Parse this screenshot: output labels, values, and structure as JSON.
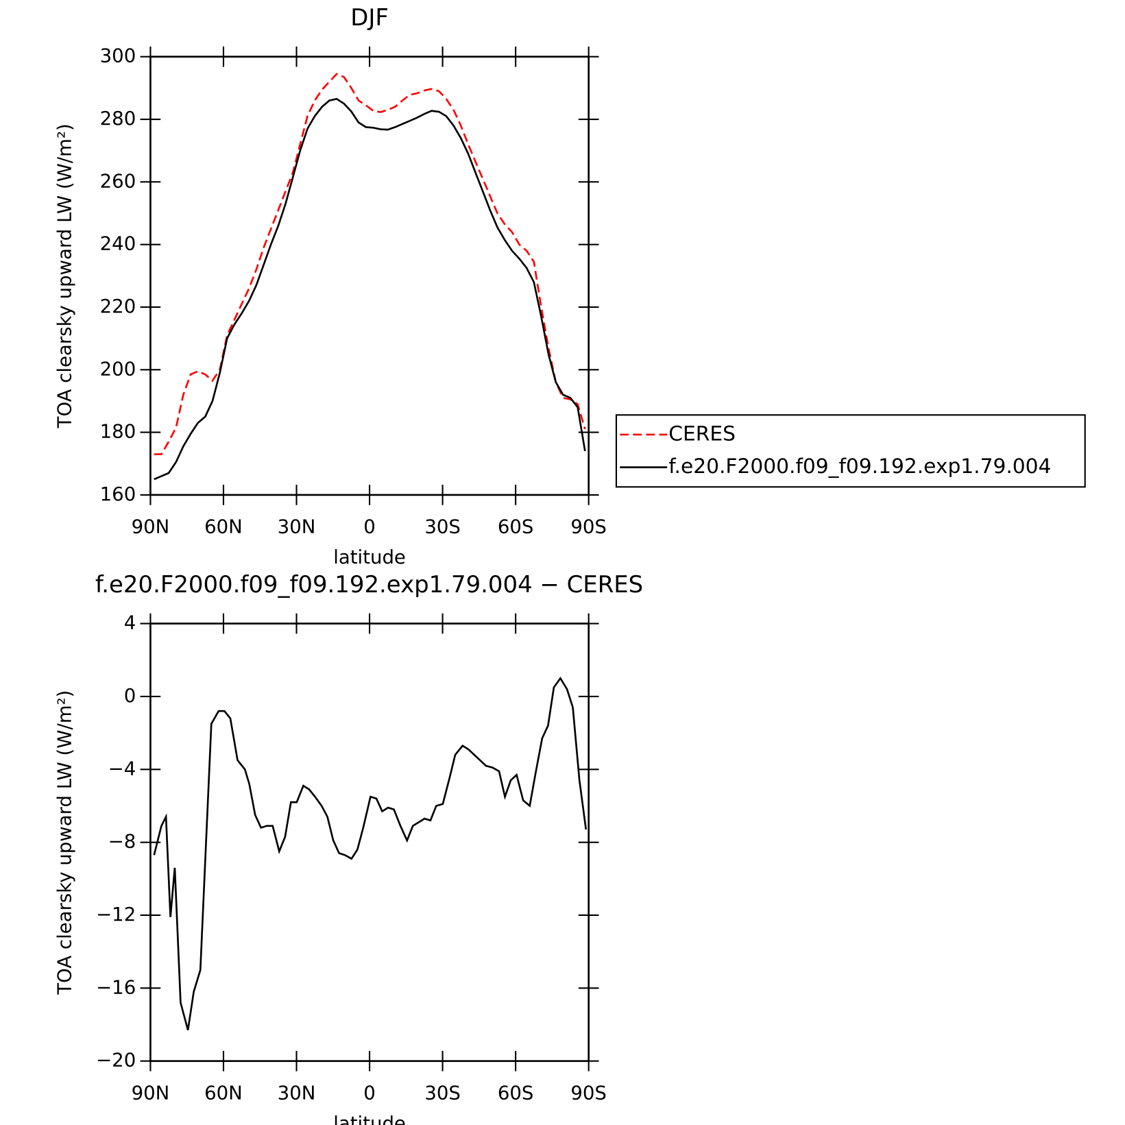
{
  "chart_data": [
    {
      "type": "line",
      "title": "DJF",
      "x_label": "latitude",
      "y_label": "TOA clearsky upward LW (W/m²)",
      "xlim": [
        90,
        -90
      ],
      "xticks": [
        {
          "value": 90,
          "label": "90N"
        },
        {
          "value": 60,
          "label": "60N"
        },
        {
          "value": 30,
          "label": "30N"
        },
        0,
        {
          "value": -30,
          "label": "30S"
        },
        {
          "value": -60,
          "label": "60S"
        },
        {
          "value": -90,
          "label": "90S"
        }
      ],
      "ylim": [
        160,
        300
      ],
      "yticks": [
        160,
        180,
        200,
        220,
        240,
        260,
        280,
        300
      ],
      "legend": "right",
      "x": [
        88.5,
        85.5,
        82.5,
        79.5,
        76.5,
        73.5,
        70.5,
        67.5,
        64.5,
        61.5,
        58.5,
        55.5,
        52.5,
        49.5,
        46.5,
        43.5,
        40.5,
        37.5,
        34.5,
        31.5,
        28.5,
        25.5,
        22.5,
        19.5,
        16.5,
        13.5,
        10.5,
        7.5,
        4.5,
        1.5,
        -1.5,
        -4.5,
        -7.5,
        -10.5,
        -13.5,
        -16.5,
        -19.5,
        -22.5,
        -25.5,
        -28.5,
        -31.5,
        -34.5,
        -37.5,
        -40.5,
        -43.5,
        -46.5,
        -49.5,
        -52.5,
        -55.5,
        -58.5,
        -61.5,
        -64.5,
        -67.5,
        -70.5,
        -73.5,
        -76.5,
        -79.5,
        -82.5,
        -85.5,
        -88.5
      ],
      "series": [
        {
          "name": "CERES",
          "color": "#ff0000",
          "linestyle": "dashed",
          "values": [
            173,
            173,
            177,
            181.5,
            192,
            198.5,
            199.5,
            198.5,
            196.5,
            200,
            211,
            216,
            221,
            226,
            232,
            239,
            245,
            251,
            257,
            263,
            272,
            281,
            286,
            289.5,
            292,
            294.5,
            293.5,
            290,
            286,
            284.5,
            282.7,
            282.3,
            283,
            284,
            286,
            287.8,
            288.3,
            289.2,
            289.7,
            289,
            286.5,
            283,
            278,
            272,
            266.5,
            261,
            255.5,
            250,
            246.5,
            244,
            240,
            238,
            234.5,
            220,
            207,
            196,
            191,
            190.5,
            189,
            181
          ]
        },
        {
          "name": "f.e20.F2000.f09_f09.192.exp1.79.004",
          "color": "#000000",
          "linestyle": "solid",
          "values": [
            165,
            166,
            167,
            170.5,
            175.5,
            179.5,
            183,
            185,
            190,
            199,
            210,
            214.5,
            218,
            222,
            227,
            233.5,
            240,
            246,
            253,
            261.5,
            270,
            277,
            281,
            284,
            286,
            286.5,
            285,
            282.5,
            279,
            277.5,
            277.3,
            276.8,
            276.7,
            277.5,
            278.5,
            279.5,
            280.5,
            281.7,
            282.7,
            282.4,
            281,
            278,
            274,
            269,
            263,
            257,
            251,
            245.5,
            241.5,
            238,
            235.5,
            232.5,
            228,
            217,
            205,
            196,
            192,
            191,
            188,
            174
          ]
        }
      ]
    },
    {
      "type": "line",
      "title": "f.e20.F2000.f09_f09.192.exp1.79.004 − CERES",
      "x_label": "latitude",
      "y_label": "TOA clearsky upward LW (W/m²)",
      "xlim": [
        90,
        -90
      ],
      "xticks": [
        {
          "value": 90,
          "label": "90N"
        },
        {
          "value": 60,
          "label": "60N"
        },
        {
          "value": 30,
          "label": "30N"
        },
        0,
        {
          "value": -30,
          "label": "30S"
        },
        {
          "value": -60,
          "label": "60S"
        },
        {
          "value": -90,
          "label": "90S"
        }
      ],
      "ylim": [
        -20,
        4
      ],
      "yticks": [
        {
          "value": -20,
          "label": "−20"
        },
        {
          "value": -16,
          "label": "−16"
        },
        {
          "value": -12,
          "label": "−12"
        },
        {
          "value": -8,
          "label": "−8"
        },
        {
          "value": -4,
          "label": "−4"
        },
        0,
        4
      ],
      "color": "#000000",
      "x": [
        88.5,
        85.5,
        83.6,
        81.8,
        80,
        77.6,
        74.6,
        72.2,
        69.5,
        65,
        62,
        59.6,
        57.2,
        54.2,
        51.2,
        49.4,
        47,
        44.6,
        42.2,
        39.8,
        37.1,
        34.7,
        32.3,
        29.9,
        27.2,
        24.8,
        22.4,
        19.7,
        17.3,
        14.9,
        12.5,
        10.1,
        7.4,
        5,
        2.6,
        -0.4,
        -2.8,
        -5.2,
        -7.6,
        -10,
        -12.7,
        -15.4,
        -17.8,
        -20.2,
        -22.6,
        -25,
        -27.4,
        -30.1,
        -32.8,
        -35.2,
        -38.2,
        -40.6,
        -43,
        -45.4,
        -47.8,
        -50.5,
        -53.2,
        -55.6,
        -58,
        -60.4,
        -63.1,
        -65.8,
        -68.2,
        -70.9,
        -73.3,
        -75.7,
        -78.4,
        -81.1,
        -83.5,
        -86.2,
        -88.9
      ],
      "values": [
        -8.7,
        -7.1,
        -6.6,
        -12.1,
        -9.4,
        -16.8,
        -18.3,
        -16.2,
        -15,
        -1.5,
        -0.8,
        -0.8,
        -1.2,
        -3.5,
        -4,
        -4.8,
        -6.5,
        -7.2,
        -7.1,
        -7.1,
        -8.5,
        -7.7,
        -5.8,
        -5.8,
        -4.9,
        -5.1,
        -5.5,
        -6,
        -6.6,
        -7.9,
        -8.6,
        -8.7,
        -8.9,
        -8.4,
        -7.2,
        -5.5,
        -5.6,
        -6.3,
        -6.1,
        -6.2,
        -7.1,
        -7.9,
        -7.1,
        -6.9,
        -6.7,
        -6.8,
        -6,
        -5.9,
        -4.5,
        -3.2,
        -2.7,
        -2.9,
        -3.2,
        -3.5,
        -3.8,
        -3.9,
        -4.1,
        -5.5,
        -4.6,
        -4.3,
        -5.7,
        -6,
        -4.2,
        -2.3,
        -1.6,
        0.5,
        1,
        0.4,
        -0.6,
        -4.6,
        -7.3
      ]
    }
  ]
}
